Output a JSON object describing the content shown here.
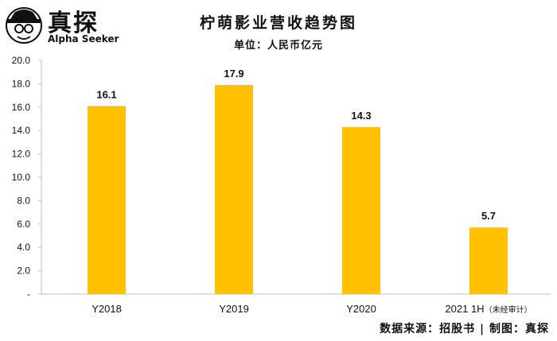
{
  "logo": {
    "cn": "真探",
    "en": "Alpha Seeker",
    "icon": "detective-icon"
  },
  "chart_data": {
    "type": "bar",
    "title": "柠萌影业营收趋势图",
    "subtitle": "单位：人民币亿元",
    "categories": [
      "Y2018",
      "Y2019",
      "Y2020",
      "2021 1H"
    ],
    "category_notes": [
      "",
      "",
      "",
      "（未经审计）"
    ],
    "values": [
      16.1,
      17.9,
      14.3,
      5.7
    ],
    "value_labels": [
      "16.1",
      "17.9",
      "14.3",
      "5.7"
    ],
    "ylim": [
      0,
      20
    ],
    "yticks": [
      "-",
      "2.0",
      "4.0",
      "6.0",
      "8.0",
      "10.0",
      "12.0",
      "14.0",
      "16.0",
      "18.0",
      "20.0"
    ],
    "xlabel": "",
    "ylabel": "",
    "bar_color": "#FFC000",
    "grid": false,
    "legend": "none"
  },
  "source": "数据来源：招股书 | 制图：真探"
}
